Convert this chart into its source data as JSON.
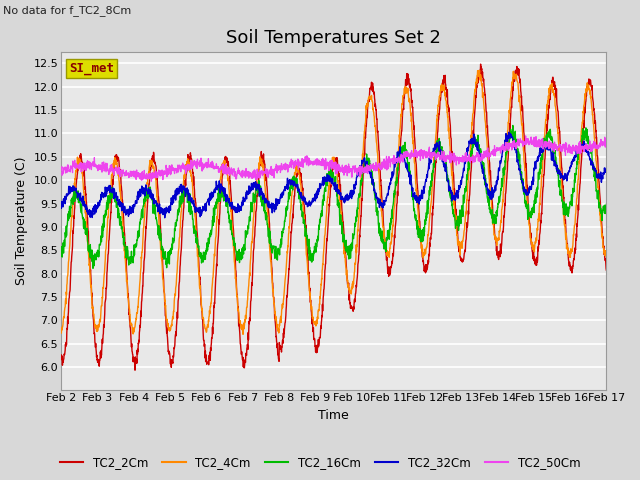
{
  "title": "Soil Temperatures Set 2",
  "subtitle": "No data for f_TC2_8Cm",
  "xlabel": "Time",
  "ylabel": "Soil Temperature (C)",
  "ylim": [
    5.5,
    12.75
  ],
  "yticks": [
    6.0,
    6.5,
    7.0,
    7.5,
    8.0,
    8.5,
    9.0,
    9.5,
    10.0,
    10.5,
    11.0,
    11.5,
    12.0,
    12.5
  ],
  "x_labels": [
    "Feb 2",
    "Feb 3",
    "Feb 4",
    "Feb 5",
    "Feb 6",
    "Feb 7",
    "Feb 8",
    "Feb 9",
    "Feb 10",
    "Feb 11",
    "Feb 12",
    "Feb 13",
    "Feb 14",
    "Feb 15",
    "Feb 16",
    "Feb 17"
  ],
  "legend_label": "SI_met",
  "series": {
    "TC2_2Cm": {
      "color": "#cc0000",
      "lw": 1.0
    },
    "TC2_4Cm": {
      "color": "#ff8800",
      "lw": 1.0
    },
    "TC2_16Cm": {
      "color": "#00bb00",
      "lw": 1.0
    },
    "TC2_32Cm": {
      "color": "#0000cc",
      "lw": 1.0
    },
    "TC2_50Cm": {
      "color": "#ee44ee",
      "lw": 0.9
    }
  },
  "bg_color": "#d8d8d8",
  "plot_bg": "#e8e8e8",
  "grid_color": "#ffffff",
  "title_fontsize": 13,
  "axis_fontsize": 9,
  "tick_fontsize": 8
}
